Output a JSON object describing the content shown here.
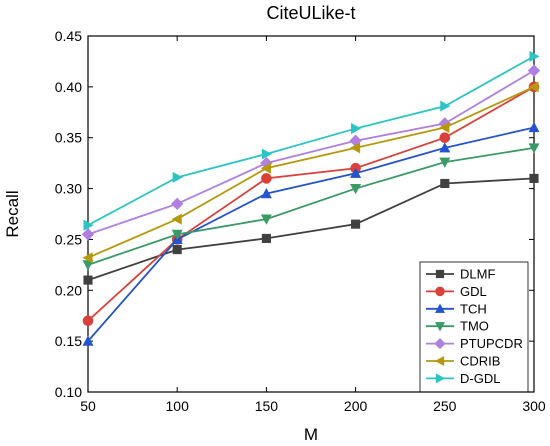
{
  "chart_data": {
    "type": "line",
    "title": "CiteULike-t",
    "xlabel": "M",
    "ylabel": "Recall",
    "x": [
      50,
      100,
      150,
      200,
      250,
      300
    ],
    "xlim": [
      50,
      300
    ],
    "ylim": [
      0.1,
      0.45
    ],
    "x_ticks": [
      "50",
      "100",
      "150",
      "200",
      "250",
      "300"
    ],
    "y_ticks": [
      "0.10",
      "0.15",
      "0.20",
      "0.25",
      "0.30",
      "0.35",
      "0.40",
      "0.45"
    ],
    "grid": false,
    "legend_position": "bottom-right",
    "series": [
      {
        "name": "DLMF",
        "color": "#404040",
        "marker": "square",
        "values": [
          0.21,
          0.24,
          0.251,
          0.265,
          0.305,
          0.31
        ]
      },
      {
        "name": "GDL",
        "color": "#d9413a",
        "marker": "circle",
        "values": [
          0.17,
          0.25,
          0.31,
          0.32,
          0.35,
          0.4
        ]
      },
      {
        "name": "TCH",
        "color": "#2454cc",
        "marker": "triangle-up",
        "values": [
          0.15,
          0.25,
          0.295,
          0.315,
          0.34,
          0.36
        ]
      },
      {
        "name": "TMO",
        "color": "#3a9a66",
        "marker": "triangle-down",
        "values": [
          0.225,
          0.255,
          0.27,
          0.3,
          0.326,
          0.34
        ]
      },
      {
        "name": "PTUPCDR",
        "color": "#b07fe0",
        "marker": "diamond",
        "values": [
          0.255,
          0.285,
          0.325,
          0.347,
          0.364,
          0.416
        ]
      },
      {
        "name": "CDRIB",
        "color": "#b5990b",
        "marker": "triangle-left",
        "values": [
          0.232,
          0.27,
          0.32,
          0.34,
          0.36,
          0.4
        ]
      },
      {
        "name": "D-GDL",
        "color": "#2cc4c4",
        "marker": "triangle-right",
        "values": [
          0.264,
          0.311,
          0.334,
          0.359,
          0.381,
          0.43
        ]
      }
    ]
  }
}
